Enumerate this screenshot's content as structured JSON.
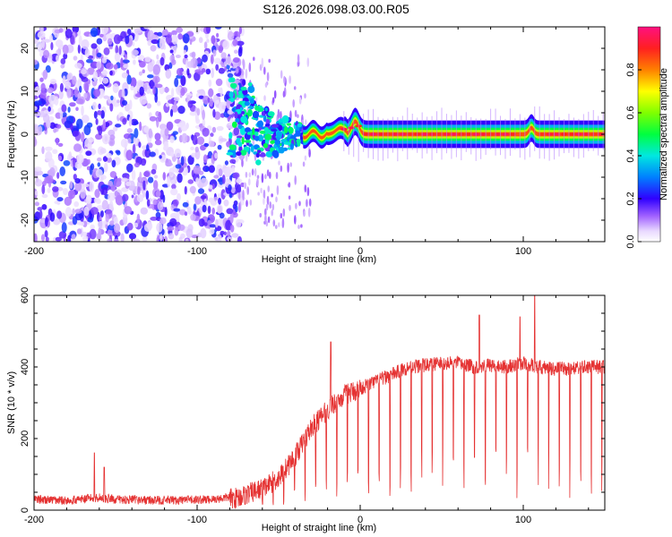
{
  "title": "S126.2026.098.03.00.R05",
  "colors": {
    "snr_line": "#e53333",
    "signal_core": "#dd2222",
    "noise_dots": "#7a22e8",
    "frame": "#000000"
  },
  "chart_data": [
    {
      "type": "heatmap",
      "name": "spectrogram",
      "xlabel": "Height of straight line (km)",
      "ylabel": "Frequency (Hz)",
      "xlim": [
        -200,
        150
      ],
      "ylim": [
        -25,
        25
      ],
      "xticks": [
        "-200",
        "-100",
        "0",
        "100"
      ],
      "yticks": [
        "-20",
        "-10",
        "0",
        "10",
        "20"
      ],
      "description_regions": [
        {
          "x_range": [
            -200,
            -75
          ],
          "frequency_range": [
            -25,
            25
          ],
          "amplitude_range": [
            0.05,
            0.3
          ]
        },
        {
          "x_range": [
            -75,
            -30
          ],
          "frequency_range": [
            -10,
            10
          ],
          "amplitude_range": [
            0.2,
            0.6
          ]
        },
        {
          "x_range": [
            -30,
            150
          ],
          "frequency_range": [
            -1,
            1
          ],
          "amplitude_range": [
            0.6,
            1.0
          ]
        }
      ],
      "colorbar": {
        "label": "Normalized spectral amplitude",
        "range": [
          0,
          1
        ],
        "ticks": [
          "0.0",
          "0.2",
          "0.4",
          "0.6",
          "0.8"
        ]
      }
    },
    {
      "type": "line",
      "name": "snr",
      "xlabel": "Height of straight line (km)",
      "ylabel": "SNR (10 * v/v)",
      "xlim": [
        -200,
        150
      ],
      "ylim": [
        0,
        600
      ],
      "xticks": [
        "-200",
        "-100",
        "0",
        "100"
      ],
      "yticks": [
        "0",
        "200",
        "400",
        "600"
      ],
      "series": [
        {
          "name": "SNR",
          "x": [
            -200,
            -180,
            -160,
            -150,
            -120,
            -90,
            -75,
            -60,
            -50,
            -40,
            -30,
            -20,
            -10,
            0,
            10,
            20,
            30,
            40,
            50,
            60,
            70,
            80,
            90,
            100,
            110,
            120,
            130,
            140,
            150
          ],
          "values": [
            25,
            22,
            30,
            25,
            22,
            25,
            35,
            60,
            90,
            150,
            230,
            280,
            320,
            340,
            360,
            380,
            400,
            405,
            410,
            410,
            400,
            405,
            400,
            410,
            400,
            395,
            395,
            400,
            400
          ]
        }
      ],
      "annotations": [
        {
          "x": -163,
          "value": 160
        },
        {
          "x": -157,
          "value": 120
        },
        {
          "x": -18,
          "value": 470
        },
        {
          "x": 73,
          "value": 545
        },
        {
          "x": 98,
          "value": 540
        },
        {
          "x": 107,
          "value": 600
        }
      ]
    }
  ]
}
